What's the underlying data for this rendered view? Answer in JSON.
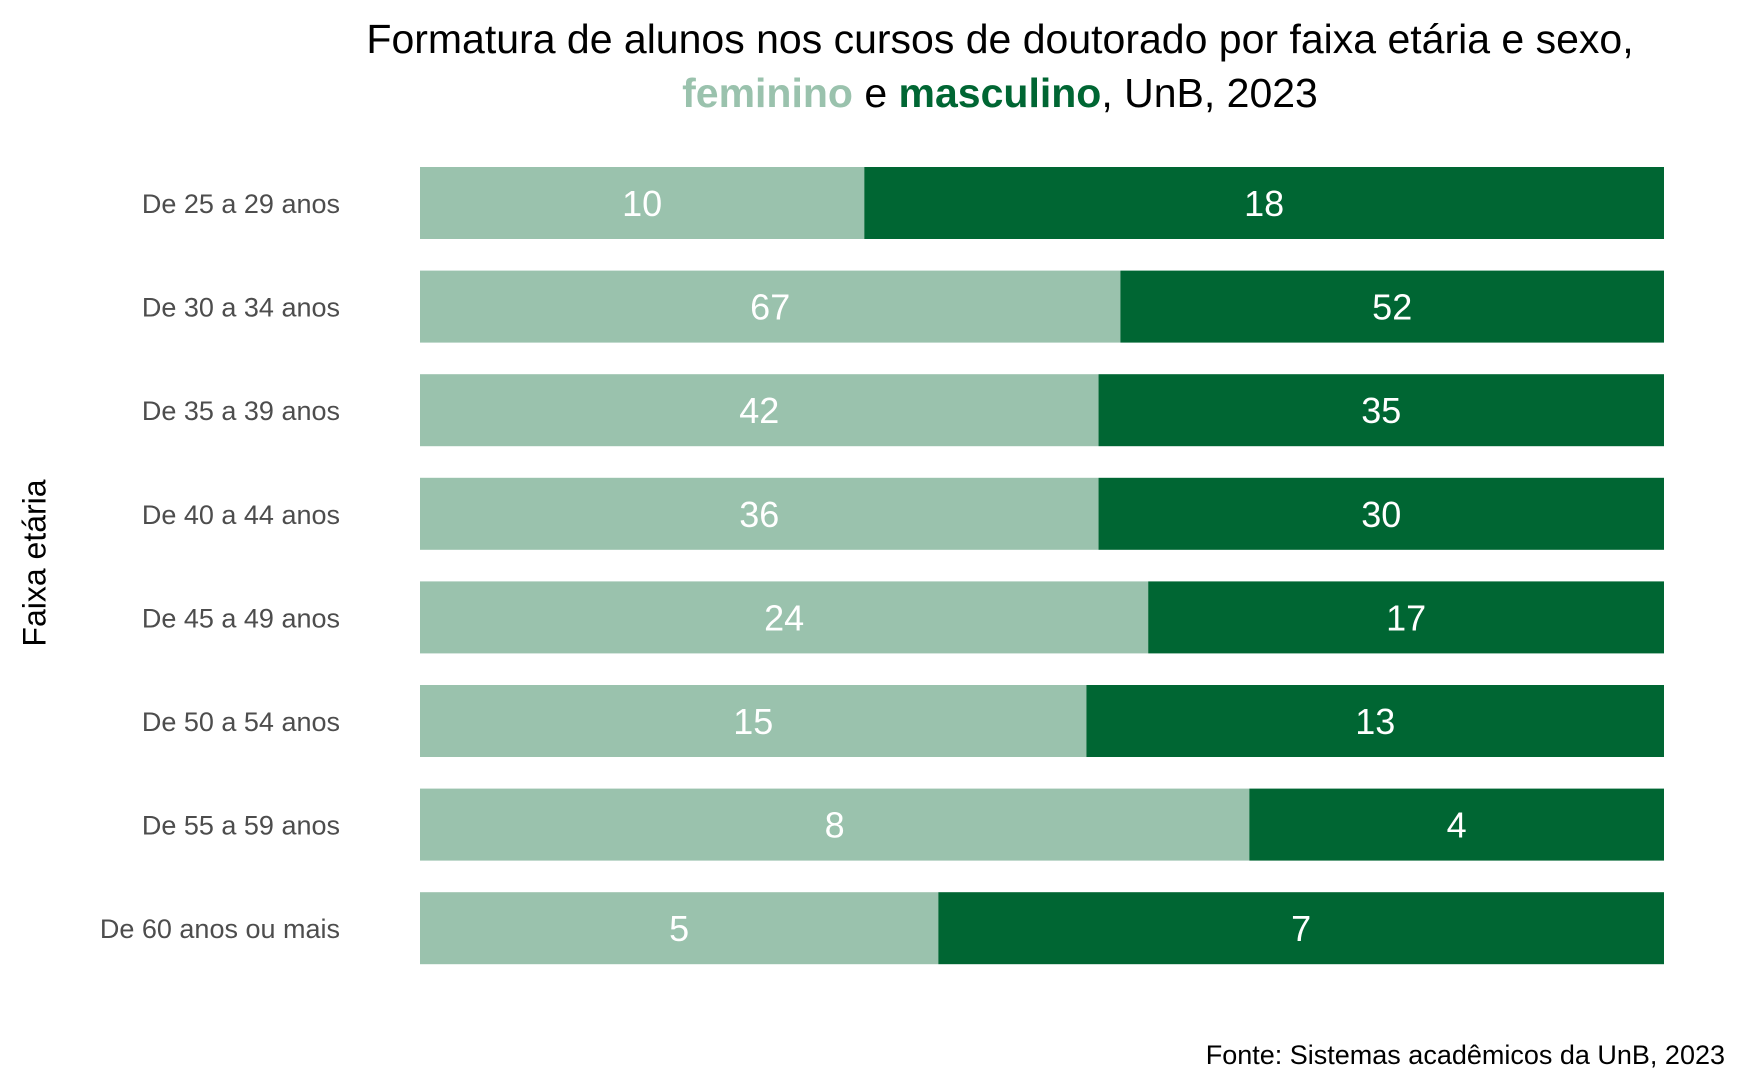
{
  "chart_data": {
    "type": "bar",
    "orientation": "horizontal",
    "stacked": "percent",
    "title_line1": "Formatura de alunos nos cursos de doutorado por faixa etária e sexo,",
    "title_legend": {
      "feminino": "feminino",
      "joiner": " e ",
      "masculino": "masculino",
      "suffix": ", UnB, 2023"
    },
    "ylabel": "Faixa etária",
    "xlabel": "",
    "caption": "Fonte: Sistemas acadêmicos da UnB, 2023",
    "grid": false,
    "categories": [
      "De 25 a 29 anos",
      "De 30 a 34 anos",
      "De 35 a 39 anos",
      "De 40 a 44 anos",
      "De 45 a 49 anos",
      "De 50 a 54 anos",
      "De 55 a 59 anos",
      "De 60 anos ou mais"
    ],
    "series": [
      {
        "name": "feminino",
        "color": "#9ac2ad",
        "values": [
          10,
          67,
          42,
          36,
          24,
          15,
          8,
          5
        ]
      },
      {
        "name": "masculino",
        "color": "#006633",
        "values": [
          18,
          52,
          35,
          30,
          17,
          13,
          4,
          7
        ]
      }
    ],
    "colors": {
      "feminino": "#9ac2ad",
      "masculino": "#006633",
      "bar_label": "#ffffff",
      "tick_label": "#4d4d4d",
      "text": "#000000"
    }
  }
}
